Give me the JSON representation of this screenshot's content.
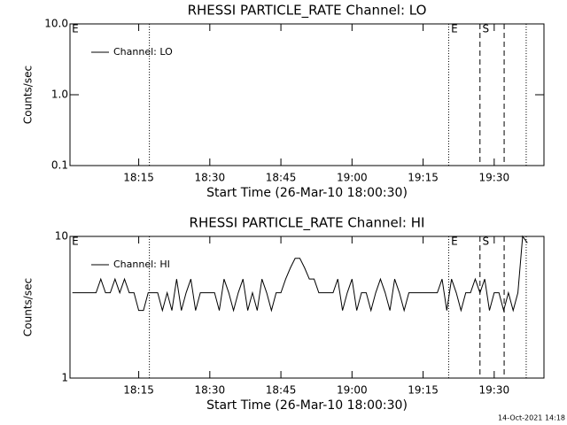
{
  "chart_data": [
    {
      "type": "line",
      "title": "RHESSI PARTICLE_RATE Channel: LO",
      "xlabel": "Start Time (26-Mar-10 18:00:30)",
      "ylabel": "Counts/sec",
      "log_y": true,
      "legend": "upper left",
      "xlim": [
        0.5,
        100.5
      ],
      "xticks": [
        {
          "value": 15,
          "label": "18:15"
        },
        {
          "value": 30,
          "label": "18:30"
        },
        {
          "value": 45,
          "label": "18:45"
        },
        {
          "value": 60,
          "label": "19:00"
        },
        {
          "value": 75,
          "label": "19:15"
        },
        {
          "value": 90,
          "label": "19:30"
        }
      ],
      "ylim": [
        0.1,
        10
      ],
      "yticks": [
        0.1,
        {
          "value": 1,
          "label": "1.0"
        },
        {
          "value": 10,
          "label": "10.0"
        }
      ],
      "vlines": [
        {
          "x": 17.25,
          "style": "dotted"
        },
        {
          "x": 80.4,
          "style": "dotted"
        },
        {
          "x": 87,
          "style": "dashed"
        },
        {
          "x": 92.1,
          "style": "dashed"
        },
        {
          "x": 96.75,
          "style": "dotted"
        }
      ],
      "annotations": [
        {
          "text": "E",
          "x": 0.9
        },
        {
          "text": "E",
          "x": 80.9
        },
        {
          "text": "S",
          "x": 87.5
        }
      ],
      "series": [
        {
          "name": "Channel: LO",
          "color": "#000000",
          "x": [],
          "values": []
        }
      ]
    },
    {
      "type": "line",
      "title": "RHESSI PARTICLE_RATE Channel: HI",
      "xlabel": "Start Time (26-Mar-10 18:00:30)",
      "ylabel": "Counts/sec",
      "log_y": true,
      "legend": "upper left",
      "xlim": [
        0.5,
        100.5
      ],
      "xticks": [
        {
          "value": 15,
          "label": "18:15"
        },
        {
          "value": 30,
          "label": "18:30"
        },
        {
          "value": 45,
          "label": "18:45"
        },
        {
          "value": 60,
          "label": "19:00"
        },
        {
          "value": 75,
          "label": "19:15"
        },
        {
          "value": 90,
          "label": "19:30"
        }
      ],
      "ylim": [
        1,
        10
      ],
      "yticks": [
        1,
        10
      ],
      "vlines": [
        {
          "x": 17.25,
          "style": "dotted"
        },
        {
          "x": 80.4,
          "style": "dotted"
        },
        {
          "x": 87,
          "style": "dashed"
        },
        {
          "x": 92.1,
          "style": "dashed"
        },
        {
          "x": 96.75,
          "style": "dotted"
        }
      ],
      "annotations": [
        {
          "text": "E",
          "x": 0.9
        },
        {
          "text": "E",
          "x": 80.9
        },
        {
          "text": "S",
          "x": 87.5
        }
      ],
      "series": [
        {
          "name": "Channel: HI",
          "color": "#000000",
          "x": [
            1,
            2,
            3,
            4,
            5,
            6,
            7,
            8,
            9,
            10,
            11,
            12,
            13,
            14,
            15,
            16,
            17,
            18,
            19,
            20,
            21,
            22,
            23,
            24,
            25,
            26,
            27,
            28,
            29,
            30,
            31,
            32,
            33,
            34,
            35,
            36,
            37,
            38,
            39,
            40,
            41,
            42,
            43,
            44,
            45,
            46,
            47,
            48,
            49,
            50,
            51,
            52,
            53,
            54,
            55,
            56,
            57,
            58,
            59,
            60,
            61,
            62,
            63,
            64,
            65,
            66,
            67,
            68,
            69,
            70,
            71,
            72,
            73,
            74,
            75,
            76,
            77,
            78,
            79,
            80,
            81,
            82,
            83,
            84,
            85,
            86,
            87,
            88,
            89,
            90,
            91,
            92,
            93,
            94,
            95,
            96,
            97
          ],
          "values": [
            4,
            4,
            4,
            4,
            4,
            4,
            5,
            4,
            4,
            5,
            4,
            5,
            4,
            4,
            3,
            3,
            4,
            4,
            4,
            3,
            4,
            3,
            5,
            3,
            4,
            5,
            3,
            4,
            4,
            4,
            4,
            3,
            5,
            4,
            3,
            4,
            5,
            3,
            4,
            3,
            5,
            4,
            3,
            4,
            4,
            5,
            6,
            7,
            7,
            6,
            5,
            5,
            4,
            4,
            4,
            4,
            5,
            3,
            4,
            5,
            3,
            4,
            4,
            3,
            4,
            5,
            4,
            3,
            5,
            4,
            3,
            4,
            4,
            4,
            4,
            4,
            4,
            4,
            5,
            3,
            5,
            4,
            3,
            4,
            4,
            5,
            4,
            5,
            3,
            4,
            4,
            3,
            4,
            3,
            4,
            10,
            9
          ]
        }
      ]
    }
  ],
  "footer": "14-Oct-2021 14:18"
}
